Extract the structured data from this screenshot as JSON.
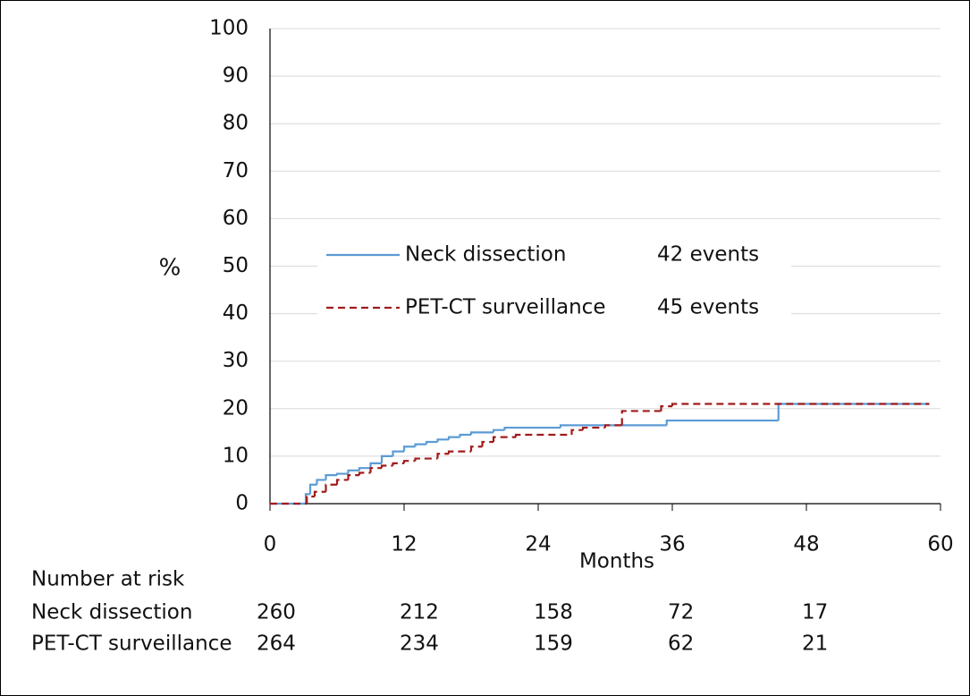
{
  "chart_data": {
    "type": "line",
    "step": "post",
    "x_label": "Months",
    "y_label": "%",
    "xlim": [
      0,
      60
    ],
    "xticks": [
      0,
      12,
      24,
      36,
      48,
      60
    ],
    "ylim": [
      0,
      100
    ],
    "yticks": [
      0,
      10,
      20,
      30,
      40,
      50,
      60,
      70,
      80,
      90,
      100
    ],
    "grid": true,
    "series": [
      {
        "name": "Neck dissection",
        "note": "42 events",
        "color": "#5b9bd5",
        "dash": false,
        "x": [
          0,
          3.2,
          3.6,
          4.2,
          5,
          6,
          7,
          8,
          9,
          10,
          11,
          12,
          13,
          14,
          15,
          16,
          17,
          18,
          20,
          21,
          26,
          35.5,
          45.5,
          59
        ],
        "values": [
          0,
          2,
          4,
          5,
          6,
          6.3,
          7,
          7.5,
          8.5,
          10,
          11,
          12,
          12.5,
          13,
          13.5,
          14,
          14.5,
          15,
          15.5,
          16,
          16.5,
          17.5,
          21,
          21
        ]
      },
      {
        "name": "PET-CT surveillance",
        "note": "45 events",
        "color": "#a01c1c",
        "dash": true,
        "x": [
          0,
          3.3,
          4,
          5,
          6,
          7,
          8,
          9,
          10,
          11,
          12,
          13,
          15,
          16,
          18,
          19,
          20,
          22,
          27,
          28,
          30,
          31.5,
          35,
          36,
          59
        ],
        "values": [
          0,
          1.5,
          2.5,
          4,
          5,
          6,
          6.5,
          7.5,
          8,
          8.5,
          9,
          9.5,
          10.5,
          11,
          12,
          13,
          14,
          14.5,
          15.5,
          16,
          16.5,
          19.5,
          20.5,
          21,
          21
        ]
      }
    ],
    "risk_table": {
      "title": "Number at risk",
      "rows": [
        {
          "name": "Neck dissection",
          "values": [
            260,
            212,
            158,
            72,
            17
          ]
        },
        {
          "name": "PET-CT surveillance",
          "values": [
            264,
            234,
            159,
            62,
            21
          ]
        }
      ]
    }
  }
}
